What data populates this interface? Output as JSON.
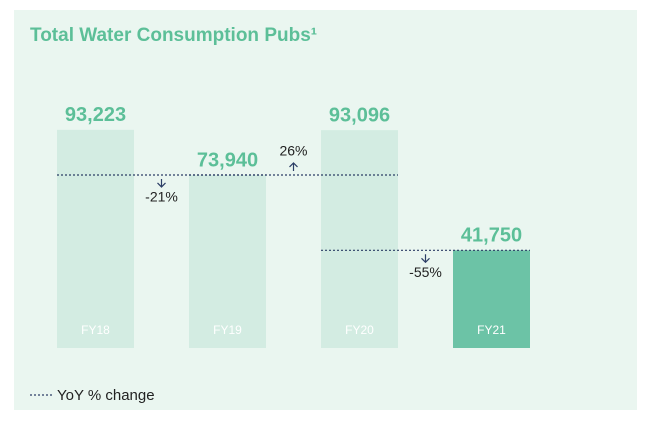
{
  "chart_data": {
    "type": "bar",
    "title": "Total Water Consumption Pubs¹",
    "categories": [
      "FY18",
      "FY19",
      "FY20",
      "FY21"
    ],
    "values": [
      93223,
      73940,
      93096,
      41750
    ],
    "value_labels": [
      "93,223",
      "73,940",
      "93,096",
      "41,750"
    ],
    "colors": [
      "#d3ece2",
      "#d3ece2",
      "#d3ece2",
      "#6cc3a6"
    ],
    "ylim": [
      0,
      100000
    ],
    "yoy_change": {
      "name": "YoY % change",
      "color": "#2c3e66",
      "values": [
        -21,
        26,
        -55
      ],
      "value_labels": [
        "-21%",
        "26%",
        "-55%"
      ]
    }
  }
}
